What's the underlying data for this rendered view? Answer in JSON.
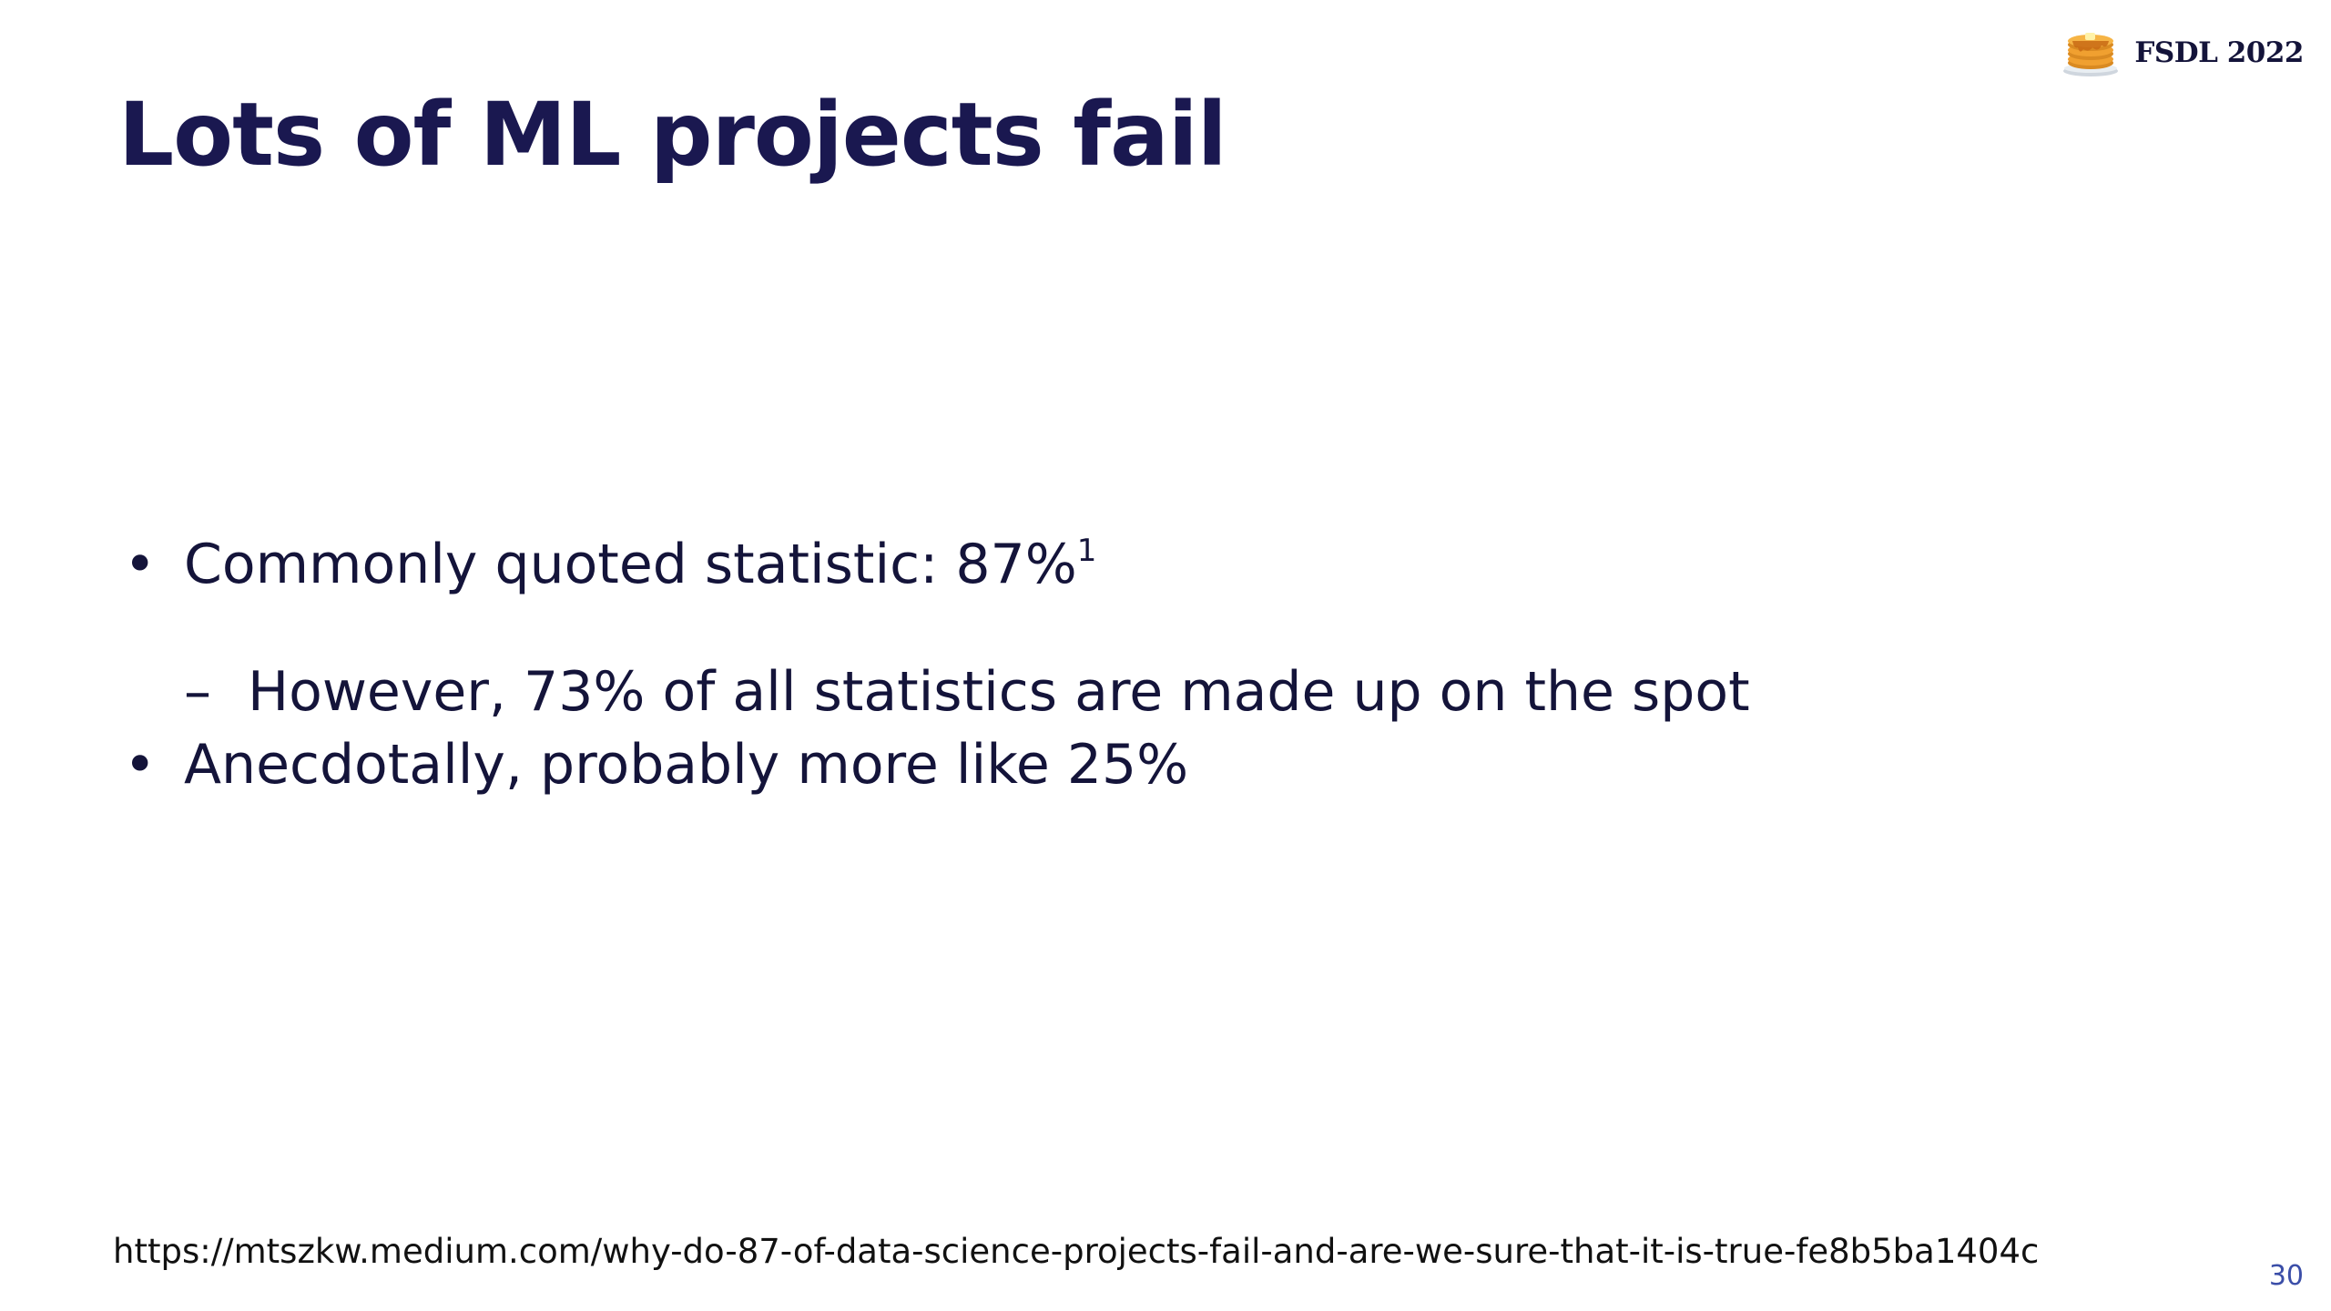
{
  "brand": {
    "logo_icon": "pancake-stack-icon",
    "label": "FSDL 2022"
  },
  "title": "Lots of ML projects fail",
  "bullets": [
    {
      "mark": "•",
      "text": "Commonly quoted statistic: 87%",
      "superscript": "1"
    },
    {
      "mark": "–",
      "text": "However, 73% of all statistics are made up on the spot"
    },
    {
      "mark": "•",
      "text": "Anecdotally, probably more like 25%"
    }
  ],
  "footnote": "https://mtszkw.medium.com/why-do-87-of-data-science-projects-fail-and-are-we-sure-that-it-is-true-fe8b5ba1404c",
  "page_number": "30",
  "colors": {
    "title": "#1a1850",
    "body_text": "#14143a",
    "page_number": "#3b4ea8",
    "pancake": "#f0a030",
    "syrup": "#c86a14"
  }
}
